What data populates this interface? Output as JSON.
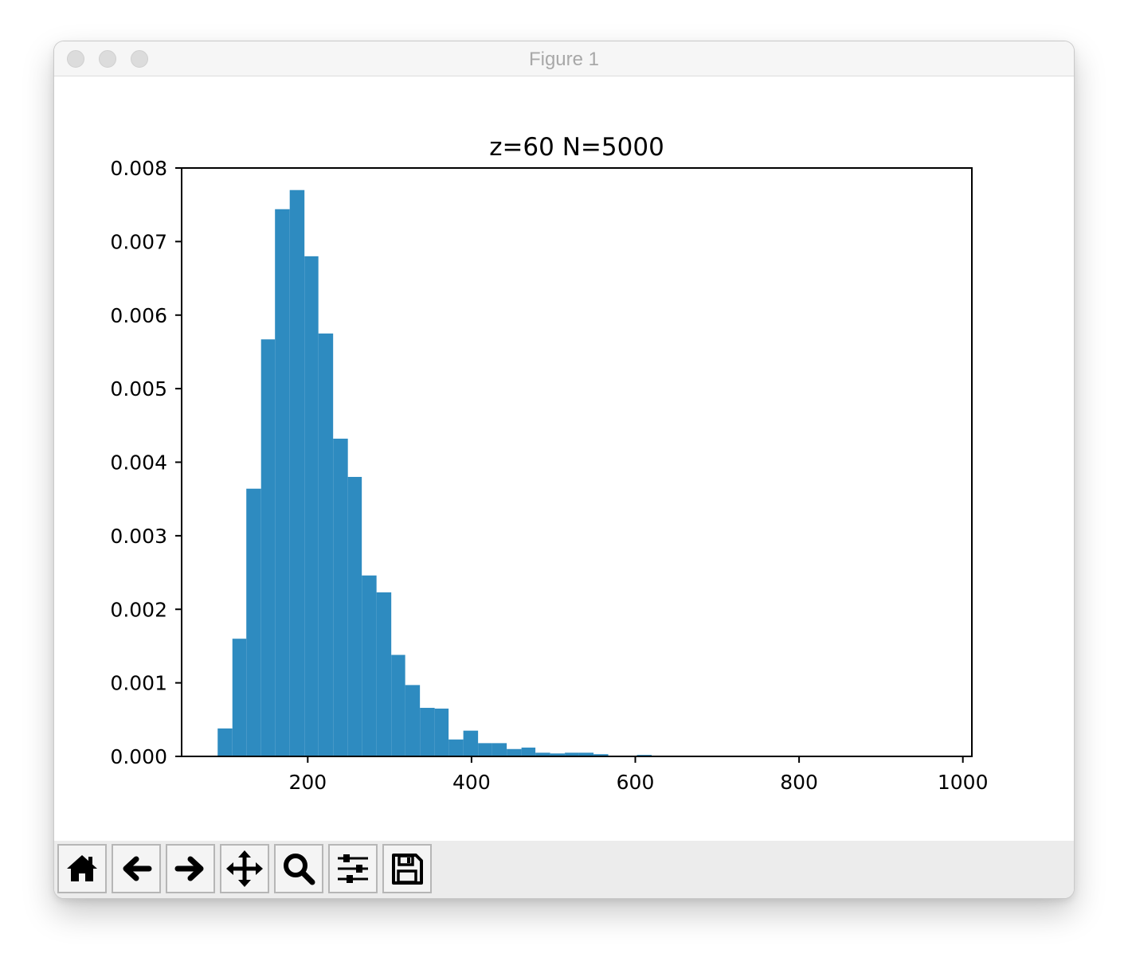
{
  "window": {
    "title": "Figure 1"
  },
  "toolbar": {
    "buttons": [
      {
        "icon": "home-icon"
      },
      {
        "icon": "arrow-left-icon"
      },
      {
        "icon": "arrow-right-icon"
      },
      {
        "icon": "move-icon"
      },
      {
        "icon": "zoom-icon"
      },
      {
        "icon": "sliders-icon"
      },
      {
        "icon": "save-icon"
      }
    ]
  },
  "chart_data": {
    "type": "bar",
    "title": "z=60 N=5000",
    "xlabel": "",
    "ylabel": "",
    "xlim": [
      46,
      1011
    ],
    "ylim": [
      0,
      0.008
    ],
    "xticks": [
      200,
      400,
      600,
      800,
      1000
    ],
    "xtick_labels": [
      "200",
      "400",
      "600",
      "800",
      "1000"
    ],
    "yticks": [
      0,
      0.001,
      0.002,
      0.003,
      0.004,
      0.005,
      0.006,
      0.007,
      0.008
    ],
    "ytick_labels": [
      "0.000",
      "0.001",
      "0.002",
      "0.003",
      "0.004",
      "0.005",
      "0.006",
      "0.007",
      "0.008"
    ],
    "grid": false,
    "bar_color": "#2e8bc0",
    "bin_edges": [
      90,
      108,
      125,
      143,
      160,
      178,
      196,
      213,
      231,
      249,
      266,
      284,
      302,
      319,
      337,
      355,
      372,
      390,
      408,
      425,
      443,
      461,
      478,
      496,
      514,
      531,
      549,
      567,
      584,
      602,
      620
    ],
    "values": [
      0.00038,
      0.0016,
      0.00364,
      0.00567,
      0.00744,
      0.0077,
      0.0068,
      0.00575,
      0.00432,
      0.0038,
      0.00246,
      0.00223,
      0.00138,
      0.00097,
      0.00066,
      0.00065,
      0.00023,
      0.00035,
      0.00018,
      0.00018,
      0.0001,
      0.00012,
      5e-05,
      4e-05,
      5e-05,
      5e-05,
      3e-05,
      0.0,
      0.0,
      2e-05
    ]
  }
}
